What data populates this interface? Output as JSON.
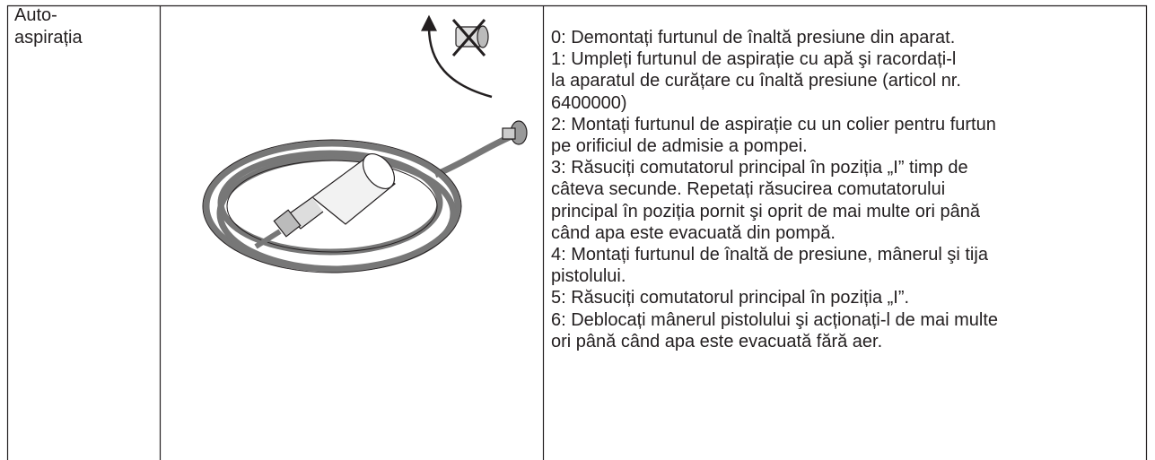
{
  "table": {
    "rows": [
      {
        "label": [
          "Auto-",
          "aspirația"
        ],
        "steps": [
          [
            "0: Demontați furtunul de înaltă presiune din aparat."
          ],
          [
            "1: Umpleți furtunul de aspirație cu apă şi racordați-l",
            "la aparatul de curățare cu înaltă presiune (articol nr.",
            "6400000)"
          ],
          [
            "2: Montați furtunul de aspirație cu un colier pentru furtun",
            "pe orificiul de admisie a pompei."
          ],
          [
            "3: Răsuciți comutatorul principal în poziția „I” timp de",
            "câteva secunde. Repetați răsucirea comutatorului",
            "principal în poziția pornit şi oprit de mai multe ori până",
            "când apa este evacuată din pompă."
          ],
          [
            "4: Montați furtunul de înaltă de presiune, mânerul şi tija",
            "pistolului."
          ],
          [
            "5: Răsuciți comutatorul principal în poziția „I”."
          ],
          [
            "6: Deblocați mânerul pistolului şi acționați-l de mai multe",
            "ori până când apa este evacuată fără aer."
          ]
        ]
      }
    ]
  }
}
